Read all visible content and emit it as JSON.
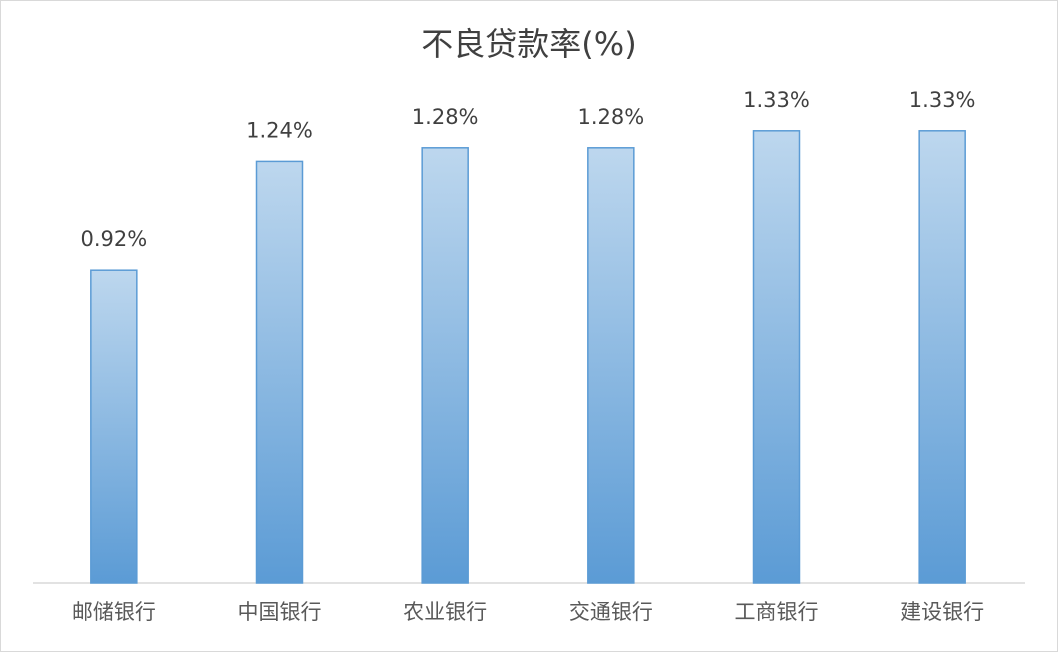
{
  "chart_data": {
    "type": "bar",
    "title": "不良贷款率(%)",
    "categories": [
      "邮储银行",
      "中国银行",
      "农业银行",
      "交通银行",
      "工商银行",
      "建设银行"
    ],
    "values": [
      0.92,
      1.24,
      1.28,
      1.28,
      1.33,
      1.33
    ],
    "value_labels": [
      "0.92%",
      "1.24%",
      "1.28%",
      "1.28%",
      "1.33%",
      "1.33%"
    ],
    "color": "#5b9bd5"
  }
}
